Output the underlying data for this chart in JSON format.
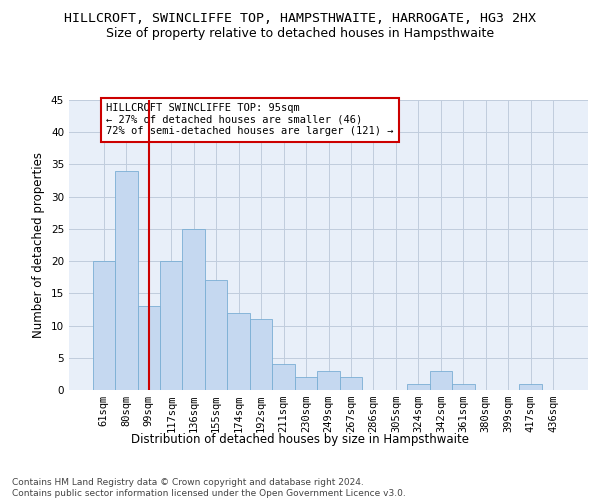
{
  "title": "HILLCROFT, SWINCLIFFE TOP, HAMPSTHWAITE, HARROGATE, HG3 2HX",
  "subtitle": "Size of property relative to detached houses in Hampsthwaite",
  "xlabel": "Distribution of detached houses by size in Hampsthwaite",
  "ylabel": "Number of detached properties",
  "footnote": "Contains HM Land Registry data © Crown copyright and database right 2024.\nContains public sector information licensed under the Open Government Licence v3.0.",
  "categories": [
    "61sqm",
    "80sqm",
    "99sqm",
    "117sqm",
    "136sqm",
    "155sqm",
    "174sqm",
    "192sqm",
    "211sqm",
    "230sqm",
    "249sqm",
    "267sqm",
    "286sqm",
    "305sqm",
    "324sqm",
    "342sqm",
    "361sqm",
    "380sqm",
    "399sqm",
    "417sqm",
    "436sqm"
  ],
  "values": [
    20,
    34,
    13,
    20,
    25,
    17,
    12,
    11,
    4,
    2,
    3,
    2,
    0,
    0,
    1,
    3,
    1,
    0,
    0,
    1,
    0
  ],
  "bar_color": "#c5d8f0",
  "bar_edge_color": "#7aaed4",
  "grid_color": "#c0ccdd",
  "background_color": "#e8eff9",
  "annotation_line_x": "99sqm",
  "annotation_line_color": "#cc0000",
  "annotation_box_text": "HILLCROFT SWINCLIFFE TOP: 95sqm\n← 27% of detached houses are smaller (46)\n72% of semi-detached houses are larger (121) →",
  "annotation_box_color": "#cc0000",
  "ylim": [
    0,
    45
  ],
  "yticks": [
    0,
    5,
    10,
    15,
    20,
    25,
    30,
    35,
    40,
    45
  ],
  "title_fontsize": 9.5,
  "subtitle_fontsize": 9,
  "xlabel_fontsize": 8.5,
  "ylabel_fontsize": 8.5,
  "tick_fontsize": 7.5,
  "annotation_fontsize": 7.5,
  "footnote_fontsize": 6.5
}
